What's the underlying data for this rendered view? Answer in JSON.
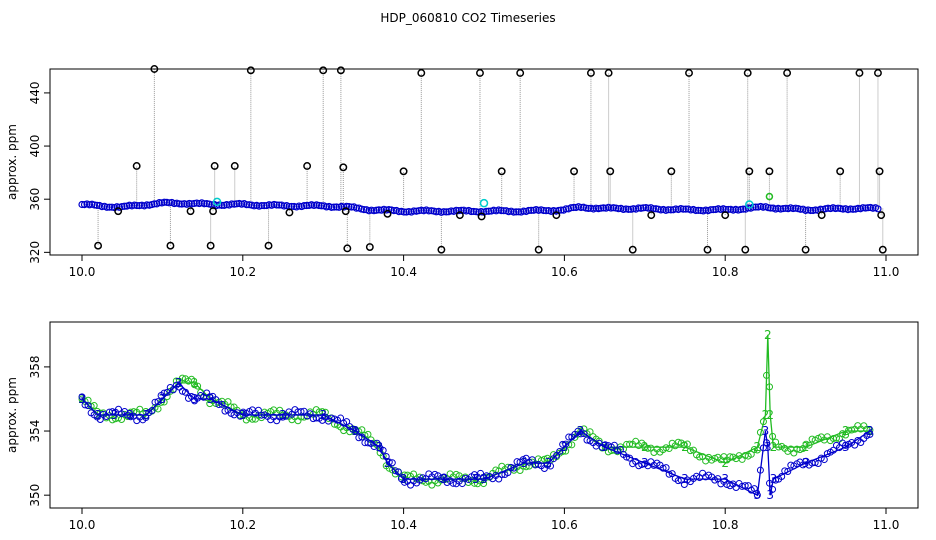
{
  "title": "HDP_060810  CO2 Timeseries",
  "chart_data": [
    {
      "type": "scatter",
      "ylabel": "approx. ppm",
      "xlim": [
        10.0,
        11.0
      ],
      "ylim": [
        318,
        458
      ],
      "x_ticks": [
        10.0,
        10.2,
        10.4,
        10.6,
        10.8,
        11.0
      ],
      "x_tick_labels": [
        "10.0",
        "10.2",
        "10.4",
        "10.6",
        "10.8",
        "11.0"
      ],
      "y_ticks": [
        320,
        360,
        400,
        440
      ],
      "y_tick_labels": [
        "320",
        "360",
        "400",
        "440"
      ],
      "colors": {
        "baseline": "#0000cc",
        "spike_marker": "#000000",
        "spike_line": "#999999",
        "highlight": "#00cccc",
        "green": "#22bb22"
      },
      "series": [
        {
          "name": "",
          "color": "#0000cc",
          "x": [
            10.0,
            10.02,
            10.05,
            10.08,
            10.1,
            10.13,
            10.16,
            10.2,
            10.25,
            10.3,
            10.33,
            10.36,
            10.4,
            10.45,
            10.5,
            10.55,
            10.6,
            10.62,
            10.65,
            10.7,
            10.75,
            10.8,
            10.85,
            10.9,
            10.95,
            10.99
          ],
          "y": [
            356,
            355,
            354,
            356,
            357,
            357,
            356,
            356,
            355,
            355,
            354,
            352,
            351,
            351,
            351,
            351,
            352,
            354,
            353,
            353,
            352,
            352,
            354,
            352,
            353,
            353
          ]
        }
      ],
      "spikes": {
        "x": [
          10.02,
          10.045,
          10.068,
          10.09,
          10.11,
          10.135,
          10.16,
          10.163,
          10.165,
          10.19,
          10.21,
          10.232,
          10.258,
          10.28,
          10.3,
          10.322,
          10.325,
          10.328,
          10.33,
          10.358,
          10.38,
          10.4,
          10.422,
          10.447,
          10.47,
          10.495,
          10.497,
          10.522,
          10.545,
          10.568,
          10.59,
          10.612,
          10.633,
          10.655,
          10.657,
          10.685,
          10.708,
          10.733,
          10.755,
          10.778,
          10.8,
          10.825,
          10.828,
          10.83,
          10.855,
          10.877,
          10.9,
          10.92,
          10.943,
          10.967,
          10.99,
          10.992,
          10.994,
          10.996
        ],
        "y": [
          325,
          351,
          385,
          458,
          325,
          351,
          325,
          351,
          385,
          385,
          457,
          325,
          350,
          385,
          457,
          457,
          384,
          351,
          323,
          324,
          349,
          381,
          455,
          322,
          348,
          455,
          347,
          381,
          455,
          322,
          348,
          381,
          455,
          455,
          381,
          322,
          348,
          381,
          455,
          322,
          348,
          322,
          455,
          381,
          381,
          455,
          322,
          348,
          381,
          455,
          455,
          381,
          348,
          322
        ]
      },
      "highlights": {
        "x": [
          10.168,
          10.5,
          10.83
        ],
        "y": [
          358,
          357,
          356
        ]
      },
      "green_points": {
        "x": [
          10.855
        ],
        "y": [
          362
        ]
      }
    },
    {
      "type": "line",
      "ylabel": "approx. ppm",
      "xlim": [
        10.0,
        11.0
      ],
      "ylim": [
        349.2,
        360.8
      ],
      "x_ticks": [
        10.0,
        10.2,
        10.4,
        10.6,
        10.8,
        11.0
      ],
      "x_tick_labels": [
        "10.0",
        "10.2",
        "10.4",
        "10.6",
        "10.8",
        "11.0"
      ],
      "y_ticks": [
        350,
        354,
        358
      ],
      "y_tick_labels": [
        "350",
        "354",
        "358"
      ],
      "series": [
        {
          "name": "",
          "color": "#22bb22",
          "marker": "2",
          "x": [
            10.0,
            10.02,
            10.04,
            10.06,
            10.08,
            10.1,
            10.12,
            10.14,
            10.16,
            10.2,
            10.25,
            10.3,
            10.34,
            10.37,
            10.38,
            10.4,
            10.45,
            10.49,
            10.5,
            10.55,
            10.58,
            10.6,
            10.62,
            10.65,
            10.7,
            10.75,
            10.8,
            10.84,
            10.85,
            10.853,
            10.856,
            10.86,
            10.9,
            10.95,
            10.98
          ],
          "y": [
            356,
            355,
            355,
            355,
            355,
            356,
            357,
            357,
            356,
            355,
            355,
            355,
            354,
            353,
            352,
            351,
            351,
            351,
            351,
            352,
            352,
            353,
            354,
            353,
            353,
            353,
            352,
            353,
            355,
            360,
            355,
            353,
            353,
            354,
            354
          ]
        },
        {
          "name": "",
          "color": "#0000cc",
          "marker": "3",
          "x": [
            10.0,
            10.02,
            10.04,
            10.06,
            10.08,
            10.1,
            10.12,
            10.14,
            10.16,
            10.2,
            10.25,
            10.3,
            10.34,
            10.37,
            10.38,
            10.4,
            10.45,
            10.49,
            10.5,
            10.55,
            10.58,
            10.6,
            10.62,
            10.65,
            10.7,
            10.75,
            10.8,
            10.84,
            10.85,
            10.853,
            10.856,
            10.86,
            10.9,
            10.95,
            10.98
          ],
          "y": [
            356,
            355,
            355,
            355,
            355,
            356,
            357,
            356,
            356,
            355,
            355,
            355,
            354,
            353,
            352,
            351,
            351,
            351,
            351,
            352,
            352,
            353,
            354,
            353,
            352,
            351,
            351,
            350,
            354,
            353,
            350,
            351,
            352,
            353,
            354
          ]
        }
      ]
    }
  ]
}
